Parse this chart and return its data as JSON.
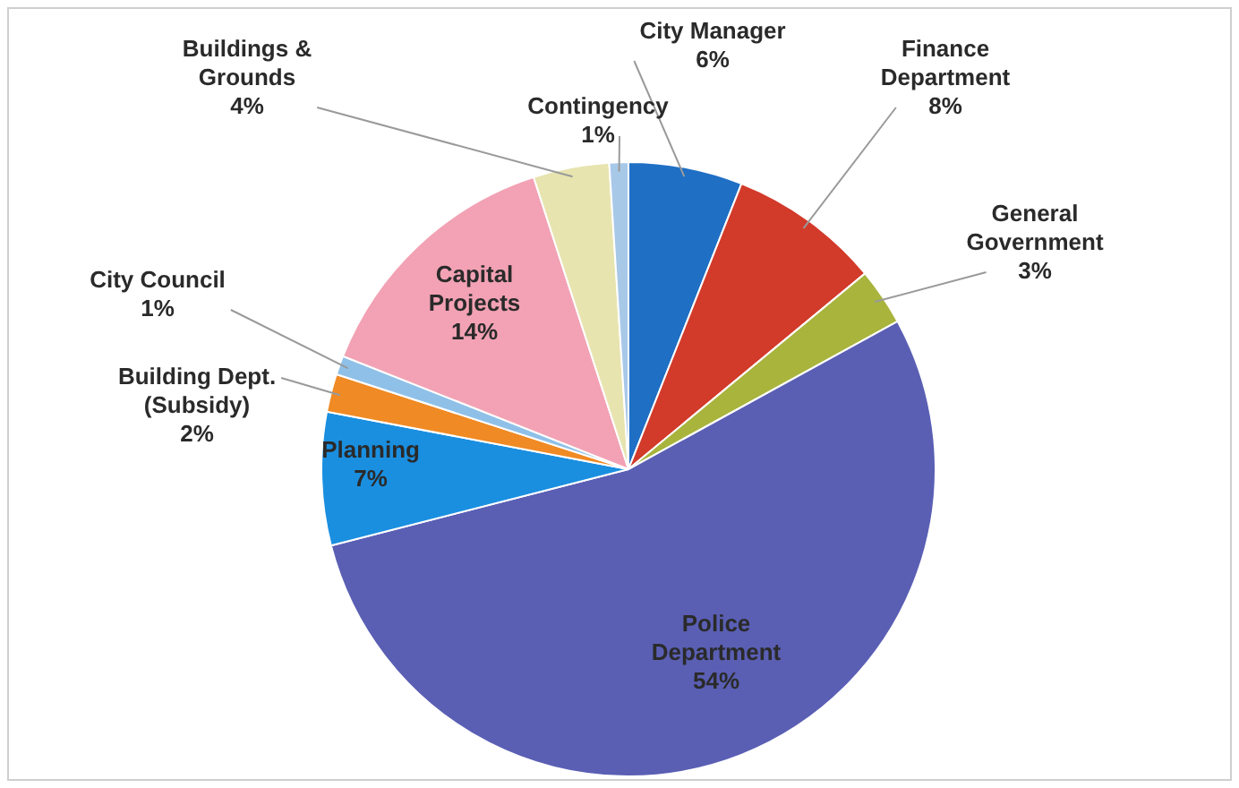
{
  "chart_data": {
    "type": "pie",
    "categories": [
      "City Manager",
      "Finance Department",
      "General Government",
      "Police Department",
      "Planning",
      "Building Dept. (Subsidy)",
      "City Council",
      "Capital Projects",
      "Buildings & Grounds",
      "Contingency"
    ],
    "values": [
      6,
      8,
      3,
      54,
      7,
      2,
      1,
      14,
      4,
      1
    ],
    "value_labels": [
      "6%",
      "8%",
      "3%",
      "54%",
      "7%",
      "2%",
      "1%",
      "14%",
      "4%",
      "1%"
    ],
    "colors": [
      "#1f6fc5",
      "#d23a2a",
      "#a8b43c",
      "#5a5fb4",
      "#1a8fe0",
      "#f08a24",
      "#8fc0e8",
      "#f2a2b4",
      "#e8e4b0",
      "#a8c8e8"
    ],
    "legend": false
  }
}
